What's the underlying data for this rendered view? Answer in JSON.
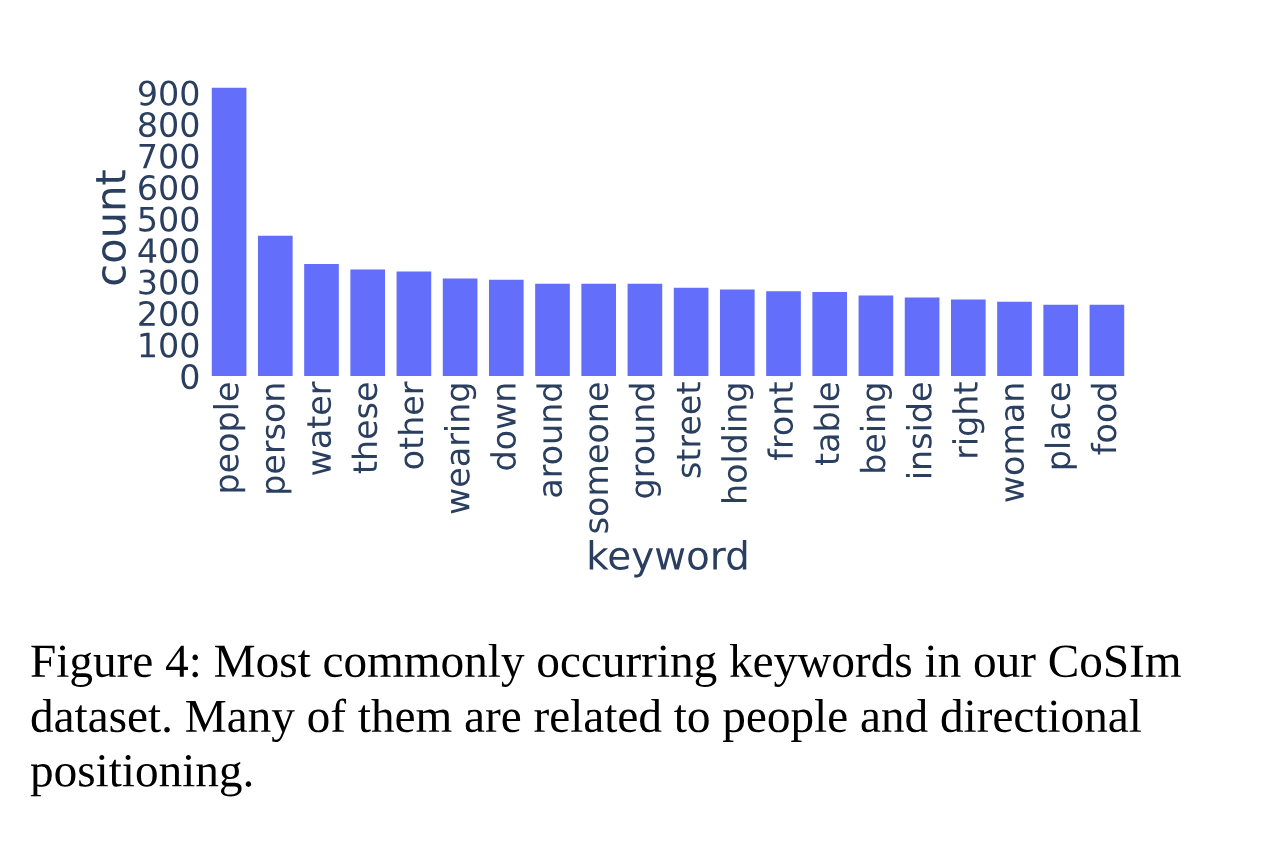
{
  "chart_data": {
    "type": "bar",
    "xlabel": "keyword",
    "ylabel": "count",
    "categories": [
      "people",
      "person",
      "water",
      "these",
      "other",
      "wearing",
      "down",
      "around",
      "someone",
      "ground",
      "street",
      "holding",
      "front",
      "table",
      "being",
      "inside",
      "right",
      "woman",
      "place",
      "food"
    ],
    "values": [
      915,
      445,
      356,
      338,
      332,
      310,
      306,
      293,
      293,
      293,
      280,
      275,
      269,
      267,
      256,
      249,
      243,
      236,
      226,
      226
    ],
    "color": "#636efa",
    "ylim": [
      0,
      940
    ],
    "yticks": [
      0,
      100,
      200,
      300,
      400,
      500,
      600,
      700,
      800,
      900
    ],
    "grid": false,
    "annotations": [
      "Figure 4: Most commonly occurring keywords in our CoSIm dataset. Many of them are related to people and directional positioning."
    ]
  }
}
